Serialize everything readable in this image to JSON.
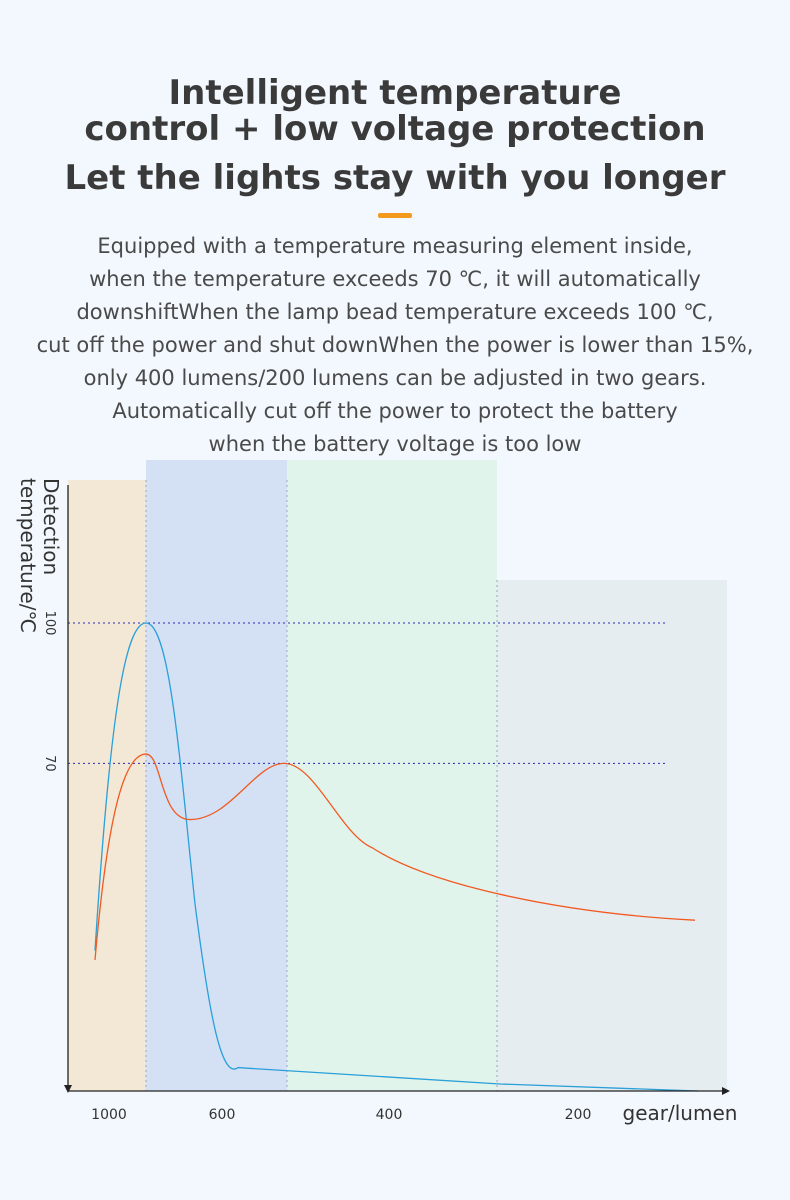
{
  "heading": {
    "line1": "Intelligent temperature",
    "line2": "control + low voltage protection",
    "line3": "Let the lights stay with you longer"
  },
  "description": [
    "Equipped with a temperature measuring element inside,",
    "when the temperature exceeds 70 ℃, it will automatically",
    "downshiftWhen the lamp bead temperature exceeds 100 ℃,",
    "cut off the power and shut downWhen the power is lower than 15%,",
    "only 400 lumens/200 lumens can be adjusted in two gears.",
    "Automatically cut off the power to protect the battery",
    "when the battery voltage is too low"
  ],
  "colors": {
    "accent": "#f39a1e",
    "zone_1000": "#f3e8d6",
    "zone_600": "#d4e1f5",
    "zone_400": "#e1f4ec",
    "zone_200": "#e6edf1",
    "curve_orange": "#f15a22",
    "curve_blue": "#2a9fd8",
    "reference_line": "#2b2bb5"
  },
  "chart_data": {
    "type": "line",
    "ylabel_line1": "Detection",
    "ylabel_line2": "temperature/℃",
    "xlabel": "gear/lumen",
    "x_categories": [
      "1000",
      "600",
      "400",
      "200"
    ],
    "y_ticks": [
      100,
      70
    ],
    "reference_lines": [
      100,
      70
    ],
    "gear_zones": [
      "1000",
      "600",
      "400",
      "200"
    ],
    "series": [
      {
        "points": [
          {
            "gear": 1000,
            "temp": 30
          },
          {
            "gear": 1000,
            "temp": 100
          },
          {
            "gear": 600,
            "temp": 25
          },
          {
            "gear": 600,
            "temp": 16
          },
          {
            "gear": 200,
            "temp": 0
          }
        ]
      },
      {
        "points": [
          {
            "gear": 1000,
            "temp": 35
          },
          {
            "gear": 1000,
            "temp": 72
          },
          {
            "gear": 600,
            "temp": 58
          },
          {
            "gear": 600,
            "temp": 70
          },
          {
            "gear": 400,
            "temp": 47
          },
          {
            "gear": 200,
            "temp": 36
          }
        ]
      }
    ]
  }
}
